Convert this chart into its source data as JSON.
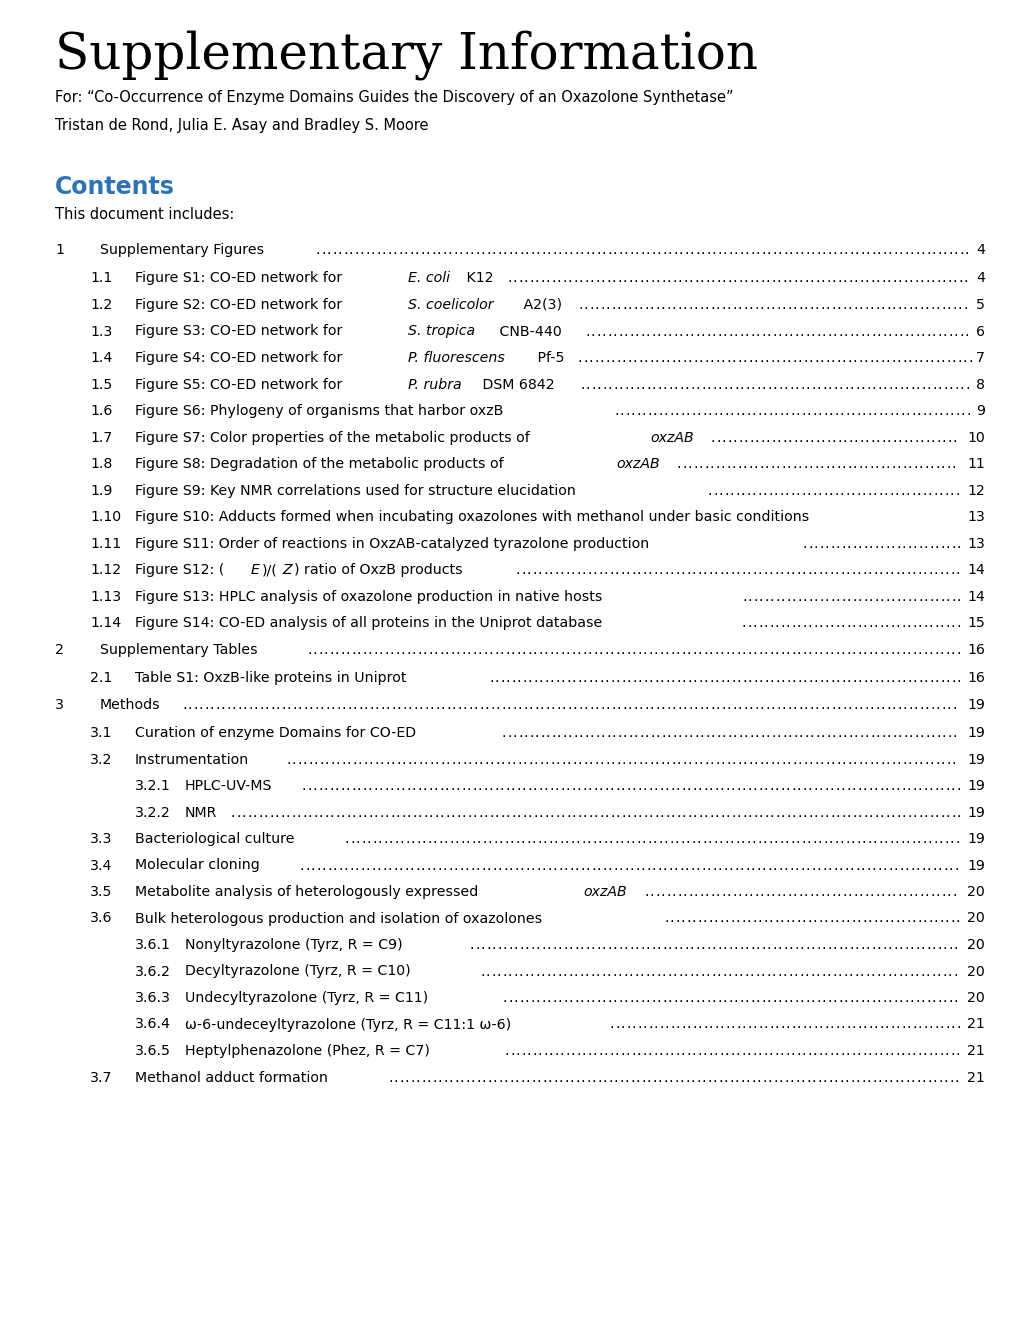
{
  "title": "Supplementary Information",
  "subtitle_line1": "For: “Co-Occurrence of Enzyme Domains Guides the Discovery of an Oxazolone Synthetase”",
  "subtitle_line2": "Tristan de Rond, Julia E. Asay and Bradley S. Moore",
  "contents_header": "Contents",
  "contents_intro": "This document includes:",
  "background_color": "#ffffff",
  "title_color": "#000000",
  "contents_color": "#2e74b5",
  "text_color": "#000000",
  "entries": [
    {
      "level": 1,
      "number": "1",
      "text": "Supplementary Figures",
      "page": "4",
      "italic_parts": []
    },
    {
      "level": 2,
      "number": "1.1",
      "text": "Figure S1: CO-ED network for ",
      "italic": "E. coli",
      "text2": " K12",
      "page": "4"
    },
    {
      "level": 2,
      "number": "1.2",
      "text": "Figure S2: CO-ED network for ",
      "italic": "S. coelicolor",
      "text2": " A2(3)",
      "page": "5"
    },
    {
      "level": 2,
      "number": "1.3",
      "text": "Figure S3: CO-ED network for ",
      "italic": "S. tropica",
      "text2": " CNB-440",
      "page": "6"
    },
    {
      "level": 2,
      "number": "1.4",
      "text": "Figure S4: CO-ED network for ",
      "italic": "P. fluorescens",
      "text2": " Pf-5",
      "page": "7"
    },
    {
      "level": 2,
      "number": "1.5",
      "text": "Figure S5: CO-ED network for ",
      "italic": "P. rubra",
      "text2": " DSM 6842",
      "page": "8"
    },
    {
      "level": 2,
      "number": "1.6",
      "text": "Figure S6: Phylogeny of organisms that harbor oxzB",
      "italic": "",
      "text2": "",
      "page": "9"
    },
    {
      "level": 2,
      "number": "1.7",
      "text": "Figure S7: Color properties of the metabolic products of ",
      "italic": "oxzAB",
      "text2": "",
      "page": "10"
    },
    {
      "level": 2,
      "number": "1.8",
      "text": "Figure S8: Degradation of the metabolic products of ",
      "italic": "oxzAB",
      "text2": "",
      "page": "11"
    },
    {
      "level": 2,
      "number": "1.9",
      "text": "Figure S9: Key NMR correlations used for structure elucidation",
      "italic": "",
      "text2": "",
      "page": "12"
    },
    {
      "level": 2,
      "number": "1.10",
      "text": "Figure S10: Adducts formed when incubating oxazolones with methanol under basic conditions",
      "italic": "",
      "text2": "",
      "page": "13"
    },
    {
      "level": 2,
      "number": "1.11",
      "text": "Figure S11: Order of reactions in OxzAB-catalyzed tyrazolone production",
      "italic": "",
      "text2": "",
      "page": "13"
    },
    {
      "level": 2,
      "number": "1.12",
      "text": "Figure S12: (",
      "italic": "E",
      "text2": ")/(",
      "italic2": "Z",
      "text3": ") ratio of OxzB products",
      "page": "14"
    },
    {
      "level": 2,
      "number": "1.13",
      "text": "Figure S13: HPLC analysis of oxazolone production in native hosts",
      "italic": "",
      "text2": "",
      "page": "14"
    },
    {
      "level": 2,
      "number": "1.14",
      "text": "Figure S14: CO-ED analysis of all proteins in the Uniprot database",
      "italic": "",
      "text2": "",
      "page": "15"
    },
    {
      "level": 1,
      "number": "2",
      "text": "Supplementary Tables",
      "page": "16",
      "italic_parts": []
    },
    {
      "level": 2,
      "number": "2.1",
      "text": "Table S1: OxzB-like proteins in Uniprot",
      "italic": "",
      "text2": "",
      "page": "16"
    },
    {
      "level": 1,
      "number": "3",
      "text": "Methods",
      "page": "19",
      "italic_parts": []
    },
    {
      "level": 2,
      "number": "3.1",
      "text": "Curation of enzyme Domains for CO-ED",
      "italic": "",
      "text2": "",
      "page": "19"
    },
    {
      "level": 2,
      "number": "3.2",
      "text": "Instrumentation",
      "italic": "",
      "text2": "",
      "page": "19"
    },
    {
      "level": 3,
      "number": "3.2.1",
      "text": "HPLC-UV-MS",
      "italic": "",
      "text2": "",
      "page": "19"
    },
    {
      "level": 3,
      "number": "3.2.2",
      "text": "NMR",
      "italic": "",
      "text2": "",
      "page": "19"
    },
    {
      "level": 2,
      "number": "3.3",
      "text": "Bacteriological culture",
      "italic": "",
      "text2": "",
      "page": "19"
    },
    {
      "level": 2,
      "number": "3.4",
      "text": "Molecular cloning",
      "italic": "",
      "text2": "",
      "page": "19"
    },
    {
      "level": 2,
      "number": "3.5",
      "text": "Metabolite analysis of heterologously expressed ",
      "italic": "oxzAB",
      "text2": "",
      "page": "20"
    },
    {
      "level": 2,
      "number": "3.6",
      "text": "Bulk heterologous production and isolation of oxazolones",
      "italic": "",
      "text2": "",
      "page": "20"
    },
    {
      "level": 3,
      "number": "3.6.1",
      "text": "Nonyltyrazolone (Tyrz, R = C9)",
      "italic": "",
      "text2": "",
      "page": "20"
    },
    {
      "level": 3,
      "number": "3.6.2",
      "text": "Decyltyrazolone (Tyrz, R = C10)",
      "italic": "",
      "text2": "",
      "page": "20"
    },
    {
      "level": 3,
      "number": "3.6.3",
      "text": "Undecyltyrazolone (Tyrz, R = C11)",
      "italic": "",
      "text2": "",
      "page": "20"
    },
    {
      "level": 3,
      "number": "3.6.4",
      "text": "ω-6-undeceyltyrazolone (Tyrz, R = C11:1 ω-6)",
      "italic": "",
      "text2": "",
      "page": "21"
    },
    {
      "level": 3,
      "number": "3.6.5",
      "text": "Heptylphenazolone (Phez, R = C7)",
      "italic": "",
      "text2": "",
      "page": "21"
    },
    {
      "level": 2,
      "number": "3.7",
      "text": "Methanol adduct formation",
      "italic": "",
      "text2": "",
      "page": "21"
    }
  ]
}
